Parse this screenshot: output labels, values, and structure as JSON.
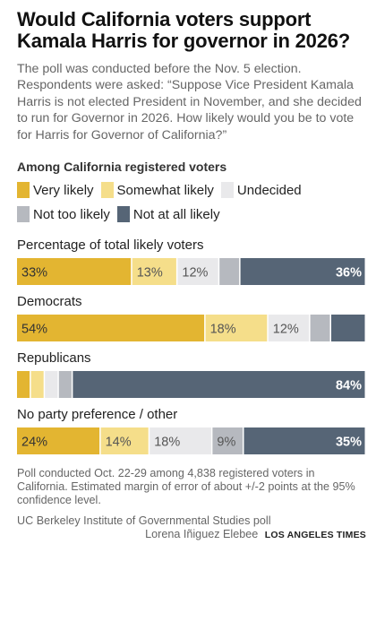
{
  "title": "Would California voters support Kamala Harris for governor in 2026?",
  "subtitle": "The poll was conducted before the Nov. 5 election. Respondents were asked: “Suppose Vice President Kamala Harris is not elected President in November, and she decided to run for Governor in 2026. How likely would you be to vote for Harris for Governor of California?”",
  "group_heading": "Among California registered voters",
  "legend": [
    {
      "label": "Very likely",
      "color": "#e3b531"
    },
    {
      "label": "Somewhat likely",
      "color": "#f5de8a"
    },
    {
      "label": "Undecided",
      "color": "#e9e9eb"
    },
    {
      "label": "Not too likely",
      "color": "#b6b9bf"
    },
    {
      "label": "Not at all likely",
      "color": "#566576"
    }
  ],
  "chart_data": {
    "type": "bar",
    "orientation": "horizontal-stacked",
    "series_names": [
      "Very likely",
      "Somewhat likely",
      "Undecided",
      "Not too likely",
      "Not at all likely"
    ],
    "colors": [
      "#e3b531",
      "#f5de8a",
      "#e9e9eb",
      "#b6b9bf",
      "#566576"
    ],
    "groups": [
      {
        "label": "Percentage of total likely voters",
        "values": [
          33,
          13,
          12,
          6,
          36
        ],
        "labels": [
          "33%",
          "13%",
          "12%",
          "",
          "36%"
        ]
      },
      {
        "label": "Democrats",
        "values": [
          54,
          18,
          12,
          6,
          10
        ],
        "labels": [
          "54%",
          "18%",
          "12%",
          "",
          ""
        ]
      },
      {
        "label": "Republicans",
        "values": [
          4,
          4,
          4,
          4,
          84
        ],
        "labels": [
          "",
          "",
          "",
          "",
          "84%"
        ]
      },
      {
        "label": "No party preference / other",
        "values": [
          24,
          14,
          18,
          9,
          35
        ],
        "labels": [
          "24%",
          "14%",
          "18%",
          "9%",
          "35%"
        ]
      }
    ]
  },
  "footnote": "Poll conducted Oct. 22-29 among 4,838 registered voters in California. Estimated margin of error of about +/-2 points at the 95% confidence level.",
  "source": "UC Berkeley Institute of Governmental Studies poll",
  "credit": "Lorena Iñiguez Elebee",
  "brand": "LOS ANGELES TIMES"
}
